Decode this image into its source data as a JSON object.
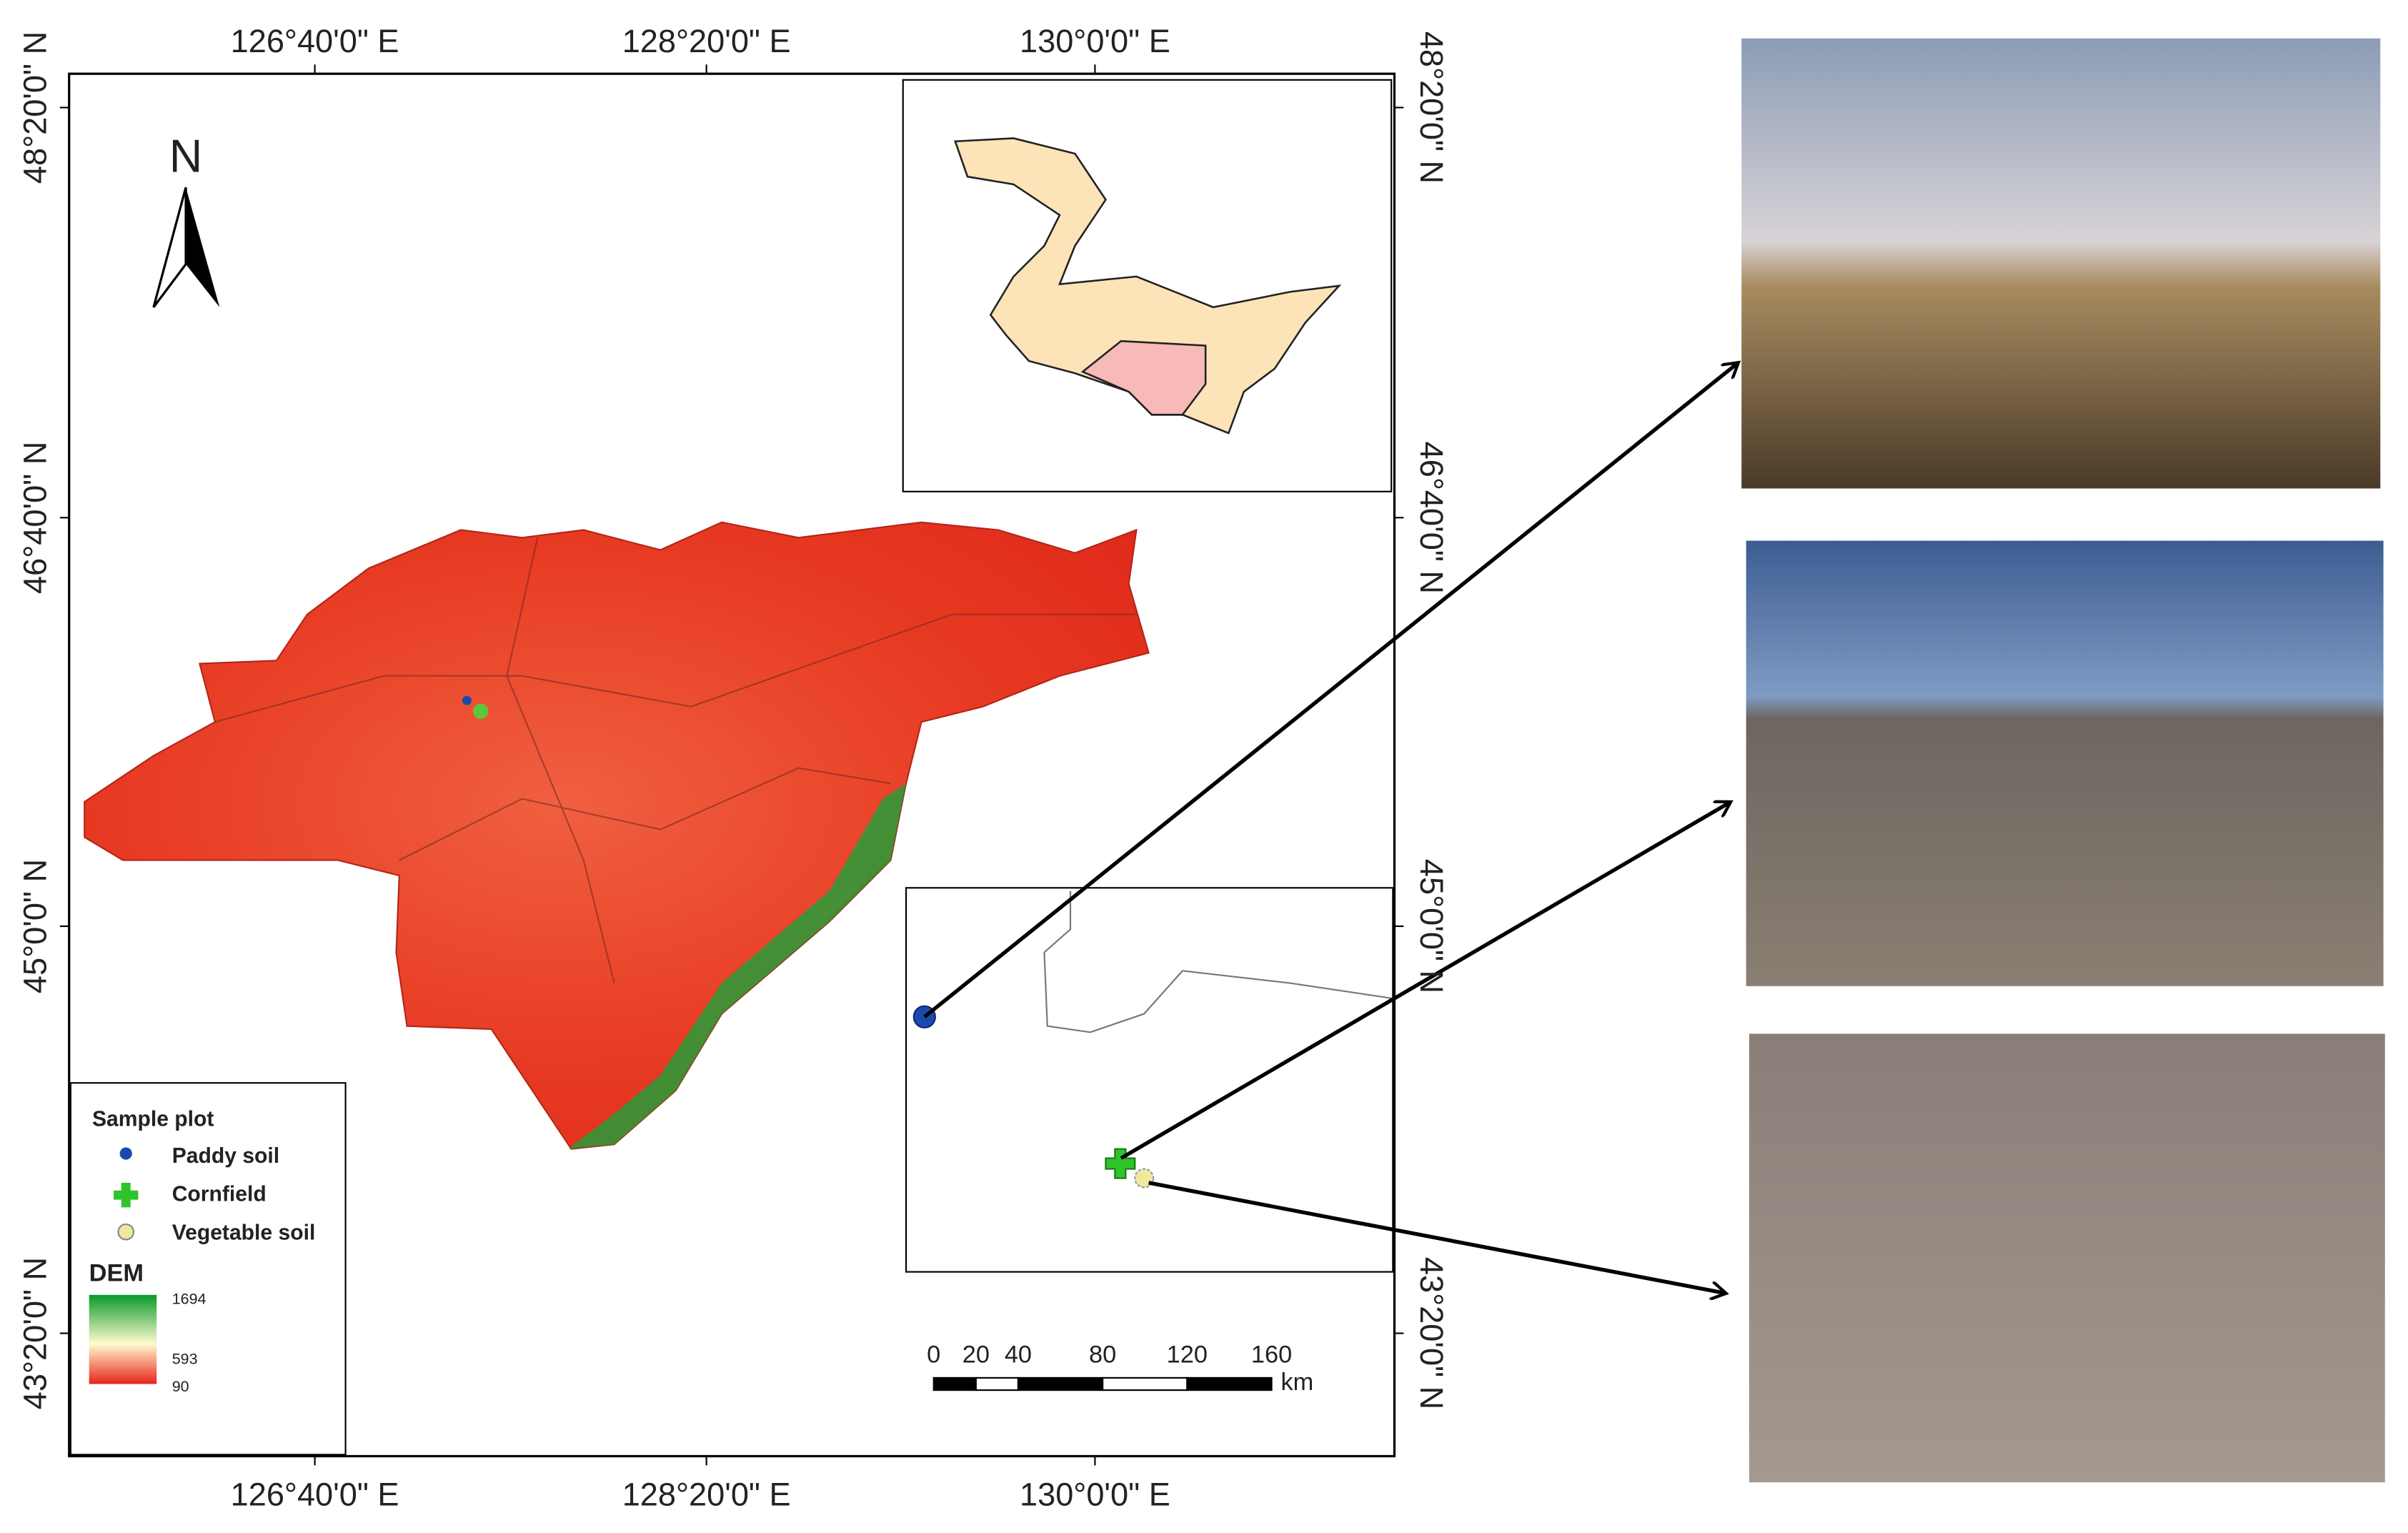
{
  "axes": {
    "top": [
      "126°40'0\" E",
      "128°20'0\" E",
      "130°0'0\" E"
    ],
    "bottom": [
      "126°40'0\" E",
      "128°20'0\" E",
      "130°0'0\" E"
    ],
    "left": [
      "48°20'0\" N",
      "46°40'0\" N",
      "45°0'0\" N",
      "43°20'0\" N"
    ],
    "right": [
      "48°20'0\" N",
      "46°40'0\" N",
      "45°0'0\" N",
      "43°20'0\" N"
    ]
  },
  "north_arrow": "N",
  "legend": {
    "title": "Sample plot",
    "items": [
      "Paddy soil",
      "Cornfield",
      "Vegetable soil"
    ]
  },
  "dem": {
    "title": "DEM",
    "max": 1694,
    "mid": 593,
    "min": 90
  },
  "scale_bar": {
    "ticks": [
      0,
      20,
      40,
      80,
      120,
      160
    ],
    "unit": "km"
  }
}
